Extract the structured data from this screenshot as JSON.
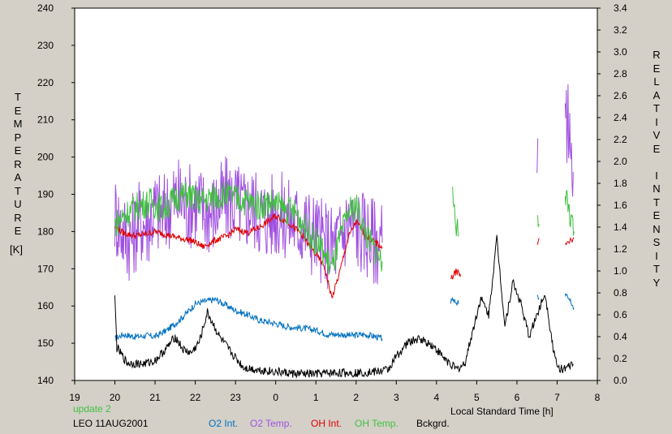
{
  "chart_data": {
    "type": "line",
    "title": "",
    "xlabel": "Local Standard Time [h]",
    "ylabel_left": "TEMPERATURE",
    "ylabel_left_unit": "[K]",
    "ylabel_right": "RELATIVE INTENSITY",
    "x_ticks": [
      "19",
      "20",
      "21",
      "22",
      "23",
      "0",
      "1",
      "2",
      "3",
      "4",
      "5",
      "6",
      "7",
      "8"
    ],
    "xlim": [
      19,
      32
    ],
    "ylim_left": [
      140,
      240
    ],
    "ylim_right": [
      0.0,
      3.4
    ],
    "y_ticks_left": [
      140,
      150,
      160,
      170,
      180,
      190,
      200,
      210,
      220,
      230,
      240
    ],
    "y_ticks_right": [
      "0.0",
      "0.2",
      "0.4",
      "0.6",
      "0.8",
      "1.0",
      "1.2",
      "1.4",
      "1.6",
      "1.8",
      "2.0",
      "2.2",
      "2.4",
      "2.6",
      "2.8",
      "3.0",
      "3.2",
      "3.4"
    ],
    "series": [
      {
        "name": "O2 Int.",
        "axis": "right",
        "color": "#0070c0",
        "points": [
          [
            20.0,
            0.38
          ],
          [
            20.2,
            0.42
          ],
          [
            20.5,
            0.4
          ],
          [
            20.8,
            0.41
          ],
          [
            21.0,
            0.4
          ],
          [
            21.3,
            0.46
          ],
          [
            21.6,
            0.55
          ],
          [
            21.8,
            0.62
          ],
          [
            22.0,
            0.7
          ],
          [
            22.2,
            0.72
          ],
          [
            22.5,
            0.74
          ],
          [
            22.8,
            0.68
          ],
          [
            23.0,
            0.64
          ],
          [
            23.3,
            0.6
          ],
          [
            23.6,
            0.55
          ],
          [
            24.0,
            0.52
          ],
          [
            24.3,
            0.49
          ],
          [
            24.6,
            0.48
          ],
          [
            25.0,
            0.46
          ],
          [
            25.3,
            0.42
          ],
          [
            25.6,
            0.42
          ],
          [
            25.9,
            0.41
          ],
          [
            26.2,
            0.42
          ],
          [
            26.5,
            0.4
          ],
          [
            26.65,
            0.38
          ]
        ],
        "segments_after": [
          [
            [
              28.35,
              0.72
            ],
            [
              28.45,
              0.74
            ],
            [
              28.55,
              0.7
            ]
          ],
          [
            [
              30.5,
              0.78
            ],
            [
              30.55,
              0.75
            ]
          ],
          [
            [
              31.2,
              0.78
            ],
            [
              31.3,
              0.74
            ],
            [
              31.42,
              0.66
            ]
          ]
        ]
      },
      {
        "name": "O2 Temp.",
        "axis": "left",
        "color": "#a050e0",
        "points": [
          [
            20.0,
            185
          ],
          [
            20.2,
            180
          ],
          [
            20.4,
            178
          ],
          [
            20.6,
            183
          ],
          [
            20.8,
            182
          ],
          [
            21.0,
            186
          ],
          [
            21.2,
            184
          ],
          [
            21.4,
            188
          ],
          [
            21.6,
            189
          ],
          [
            21.8,
            187
          ],
          [
            22.0,
            188
          ],
          [
            22.2,
            186
          ],
          [
            22.4,
            185
          ],
          [
            22.6,
            187
          ],
          [
            22.8,
            189
          ],
          [
            23.0,
            188
          ],
          [
            23.2,
            186
          ],
          [
            23.4,
            187
          ],
          [
            23.6,
            185
          ],
          [
            23.8,
            184
          ],
          [
            24.0,
            185
          ],
          [
            24.2,
            184
          ],
          [
            24.4,
            183
          ],
          [
            24.6,
            182
          ],
          [
            24.8,
            181
          ],
          [
            25.0,
            179
          ],
          [
            25.2,
            177
          ],
          [
            25.4,
            176
          ],
          [
            25.6,
            178
          ],
          [
            25.8,
            183
          ],
          [
            26.0,
            181
          ],
          [
            26.2,
            180
          ],
          [
            26.4,
            178
          ],
          [
            26.65,
            177
          ]
        ],
        "segments_after": [
          [
            [
              30.5,
              198
            ],
            [
              30.52,
              205
            ]
          ],
          [
            [
              31.2,
              210
            ],
            [
              31.3,
              207
            ],
            [
              31.4,
              196
            ]
          ]
        ]
      },
      {
        "name": "OH Int.",
        "axis": "right",
        "color": "#e00000",
        "points": [
          [
            20.0,
            1.4
          ],
          [
            20.2,
            1.35
          ],
          [
            20.5,
            1.32
          ],
          [
            20.8,
            1.34
          ],
          [
            21.0,
            1.36
          ],
          [
            21.3,
            1.33
          ],
          [
            21.6,
            1.3
          ],
          [
            21.9,
            1.28
          ],
          [
            22.2,
            1.22
          ],
          [
            22.5,
            1.28
          ],
          [
            22.8,
            1.32
          ],
          [
            23.0,
            1.38
          ],
          [
            23.3,
            1.35
          ],
          [
            23.6,
            1.4
          ],
          [
            24.0,
            1.5
          ],
          [
            24.3,
            1.45
          ],
          [
            24.6,
            1.35
          ],
          [
            24.9,
            1.2
          ],
          [
            25.2,
            1.05
          ],
          [
            25.4,
            0.75
          ],
          [
            25.6,
            1.0
          ],
          [
            25.8,
            1.3
          ],
          [
            26.0,
            1.45
          ],
          [
            26.3,
            1.3
          ],
          [
            26.65,
            1.22
          ]
        ],
        "segments_after": [
          [
            [
              28.35,
              0.92
            ],
            [
              28.5,
              1.0
            ],
            [
              28.6,
              0.95
            ]
          ],
          [
            [
              30.5,
              1.22
            ],
            [
              30.55,
              1.3
            ]
          ],
          [
            [
              31.2,
              1.26
            ],
            [
              31.3,
              1.28
            ],
            [
              31.42,
              1.3
            ]
          ]
        ]
      },
      {
        "name": "OH Temp.",
        "axis": "left",
        "color": "#40c040",
        "points": [
          [
            20.0,
            182
          ],
          [
            20.3,
            185
          ],
          [
            20.6,
            187
          ],
          [
            20.9,
            188
          ],
          [
            21.2,
            186
          ],
          [
            21.5,
            189
          ],
          [
            21.8,
            190
          ],
          [
            22.1,
            188
          ],
          [
            22.4,
            189
          ],
          [
            22.7,
            190
          ],
          [
            23.0,
            189
          ],
          [
            23.3,
            188
          ],
          [
            23.6,
            187
          ],
          [
            23.9,
            188
          ],
          [
            24.2,
            186
          ],
          [
            24.5,
            185
          ],
          [
            24.8,
            180
          ],
          [
            25.1,
            176
          ],
          [
            25.4,
            170
          ],
          [
            25.6,
            178
          ],
          [
            25.8,
            185
          ],
          [
            26.0,
            187
          ],
          [
            26.3,
            178
          ],
          [
            26.65,
            172
          ]
        ],
        "segments_after": [
          [
            [
              28.4,
              189
            ],
            [
              28.48,
              181
            ],
            [
              28.55,
              179
            ]
          ],
          [
            [
              30.5,
              187
            ],
            [
              30.55,
              182
            ]
          ],
          [
            [
              31.2,
              190
            ],
            [
              31.3,
              185
            ],
            [
              31.42,
              180
            ]
          ]
        ]
      },
      {
        "name": "Bckgrd.",
        "axis": "right",
        "color": "#000000",
        "points": [
          [
            20.0,
            0.75
          ],
          [
            20.05,
            0.3
          ],
          [
            20.3,
            0.16
          ],
          [
            20.7,
            0.15
          ],
          [
            21.0,
            0.18
          ],
          [
            21.3,
            0.3
          ],
          [
            21.5,
            0.4
          ],
          [
            21.7,
            0.28
          ],
          [
            21.9,
            0.25
          ],
          [
            22.1,
            0.35
          ],
          [
            22.3,
            0.62
          ],
          [
            22.6,
            0.4
          ],
          [
            22.9,
            0.25
          ],
          [
            23.2,
            0.12
          ],
          [
            23.5,
            0.1
          ],
          [
            24.0,
            0.08
          ],
          [
            24.5,
            0.06
          ],
          [
            25.0,
            0.06
          ],
          [
            25.5,
            0.07
          ],
          [
            26.0,
            0.07
          ],
          [
            26.5,
            0.08
          ],
          [
            26.8,
            0.1
          ],
          [
            27.0,
            0.22
          ],
          [
            27.3,
            0.35
          ],
          [
            27.6,
            0.38
          ],
          [
            27.9,
            0.32
          ],
          [
            28.2,
            0.2
          ],
          [
            28.5,
            0.1
          ],
          [
            28.7,
            0.15
          ],
          [
            28.9,
            0.45
          ],
          [
            29.1,
            0.75
          ],
          [
            29.3,
            0.6
          ],
          [
            29.5,
            1.3
          ],
          [
            29.7,
            0.5
          ],
          [
            29.9,
            0.9
          ],
          [
            30.1,
            0.7
          ],
          [
            30.3,
            0.4
          ],
          [
            30.5,
            0.6
          ],
          [
            30.7,
            0.8
          ],
          [
            30.9,
            0.3
          ],
          [
            31.0,
            0.12
          ],
          [
            31.2,
            0.1
          ],
          [
            31.4,
            0.15
          ]
        ]
      }
    ],
    "header_text": "update 2",
    "station_text": "LEO 11AUG2001",
    "legend_position": "bottom"
  },
  "colors": {
    "background": "#d4d0c8",
    "plot": "#ffffff",
    "o2_int": "#0070c0",
    "o2_temp": "#a050e0",
    "oh_int": "#e00000",
    "oh_temp": "#40c040",
    "bckgrd": "#000000",
    "update": "#40c040"
  }
}
